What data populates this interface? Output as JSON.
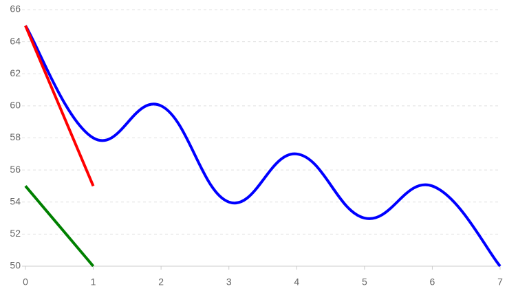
{
  "chart_data": {
    "type": "line",
    "x": [
      0,
      1,
      2,
      3,
      4,
      5,
      6,
      7
    ],
    "series": [
      {
        "color": "#0000ff",
        "values": [
          65,
          58,
          60,
          54,
          57,
          53,
          55,
          50
        ]
      },
      {
        "color": "#ff0000",
        "values": [
          65,
          55,
          null,
          null,
          null,
          null,
          null,
          null
        ]
      },
      {
        "color": "#008000",
        "values": [
          55,
          50,
          null,
          null,
          null,
          null,
          null,
          null
        ]
      }
    ],
    "xlim": [
      0,
      7
    ],
    "xticks": [
      0,
      1,
      2,
      3,
      4,
      5,
      6,
      7
    ],
    "ylim": [
      50,
      66
    ],
    "yticks": [
      50,
      52,
      54,
      56,
      58,
      60,
      62,
      64,
      66
    ],
    "grid": true
  }
}
